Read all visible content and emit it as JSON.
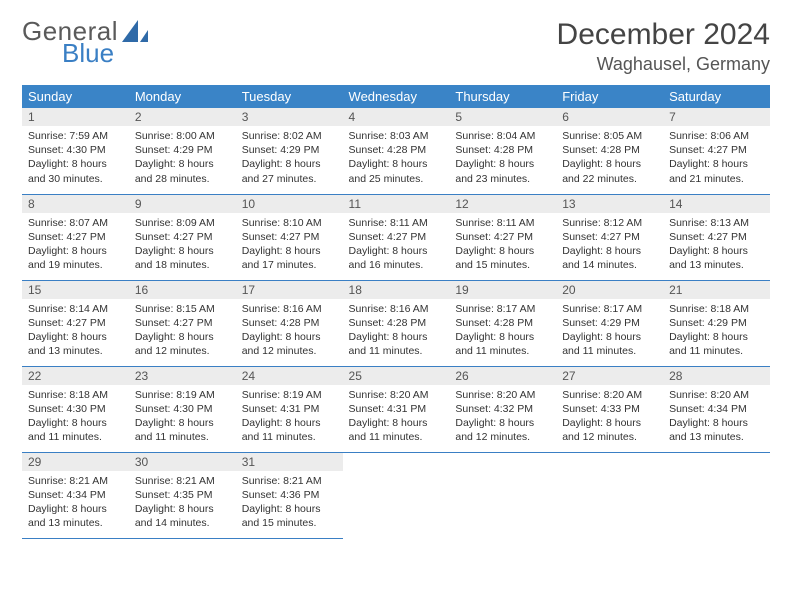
{
  "brand": {
    "word1": "General",
    "word2": "Blue",
    "mark_color": "#2f6aa8"
  },
  "header": {
    "title": "December 2024",
    "location": "Waghausel, Germany"
  },
  "colors": {
    "header_bg": "#3a84c7",
    "header_fg": "#ffffff",
    "rule": "#3a7fc4",
    "daynum_bg": "#ececec"
  },
  "weekdays": [
    "Sunday",
    "Monday",
    "Tuesday",
    "Wednesday",
    "Thursday",
    "Friday",
    "Saturday"
  ],
  "days": [
    {
      "n": 1,
      "sr": "7:59 AM",
      "ss": "4:30 PM",
      "dl": "8 hours and 30 minutes."
    },
    {
      "n": 2,
      "sr": "8:00 AM",
      "ss": "4:29 PM",
      "dl": "8 hours and 28 minutes."
    },
    {
      "n": 3,
      "sr": "8:02 AM",
      "ss": "4:29 PM",
      "dl": "8 hours and 27 minutes."
    },
    {
      "n": 4,
      "sr": "8:03 AM",
      "ss": "4:28 PM",
      "dl": "8 hours and 25 minutes."
    },
    {
      "n": 5,
      "sr": "8:04 AM",
      "ss": "4:28 PM",
      "dl": "8 hours and 23 minutes."
    },
    {
      "n": 6,
      "sr": "8:05 AM",
      "ss": "4:28 PM",
      "dl": "8 hours and 22 minutes."
    },
    {
      "n": 7,
      "sr": "8:06 AM",
      "ss": "4:27 PM",
      "dl": "8 hours and 21 minutes."
    },
    {
      "n": 8,
      "sr": "8:07 AM",
      "ss": "4:27 PM",
      "dl": "8 hours and 19 minutes."
    },
    {
      "n": 9,
      "sr": "8:09 AM",
      "ss": "4:27 PM",
      "dl": "8 hours and 18 minutes."
    },
    {
      "n": 10,
      "sr": "8:10 AM",
      "ss": "4:27 PM",
      "dl": "8 hours and 17 minutes."
    },
    {
      "n": 11,
      "sr": "8:11 AM",
      "ss": "4:27 PM",
      "dl": "8 hours and 16 minutes."
    },
    {
      "n": 12,
      "sr": "8:11 AM",
      "ss": "4:27 PM",
      "dl": "8 hours and 15 minutes."
    },
    {
      "n": 13,
      "sr": "8:12 AM",
      "ss": "4:27 PM",
      "dl": "8 hours and 14 minutes."
    },
    {
      "n": 14,
      "sr": "8:13 AM",
      "ss": "4:27 PM",
      "dl": "8 hours and 13 minutes."
    },
    {
      "n": 15,
      "sr": "8:14 AM",
      "ss": "4:27 PM",
      "dl": "8 hours and 13 minutes."
    },
    {
      "n": 16,
      "sr": "8:15 AM",
      "ss": "4:27 PM",
      "dl": "8 hours and 12 minutes."
    },
    {
      "n": 17,
      "sr": "8:16 AM",
      "ss": "4:28 PM",
      "dl": "8 hours and 12 minutes."
    },
    {
      "n": 18,
      "sr": "8:16 AM",
      "ss": "4:28 PM",
      "dl": "8 hours and 11 minutes."
    },
    {
      "n": 19,
      "sr": "8:17 AM",
      "ss": "4:28 PM",
      "dl": "8 hours and 11 minutes."
    },
    {
      "n": 20,
      "sr": "8:17 AM",
      "ss": "4:29 PM",
      "dl": "8 hours and 11 minutes."
    },
    {
      "n": 21,
      "sr": "8:18 AM",
      "ss": "4:29 PM",
      "dl": "8 hours and 11 minutes."
    },
    {
      "n": 22,
      "sr": "8:18 AM",
      "ss": "4:30 PM",
      "dl": "8 hours and 11 minutes."
    },
    {
      "n": 23,
      "sr": "8:19 AM",
      "ss": "4:30 PM",
      "dl": "8 hours and 11 minutes."
    },
    {
      "n": 24,
      "sr": "8:19 AM",
      "ss": "4:31 PM",
      "dl": "8 hours and 11 minutes."
    },
    {
      "n": 25,
      "sr": "8:20 AM",
      "ss": "4:31 PM",
      "dl": "8 hours and 11 minutes."
    },
    {
      "n": 26,
      "sr": "8:20 AM",
      "ss": "4:32 PM",
      "dl": "8 hours and 12 minutes."
    },
    {
      "n": 27,
      "sr": "8:20 AM",
      "ss": "4:33 PM",
      "dl": "8 hours and 12 minutes."
    },
    {
      "n": 28,
      "sr": "8:20 AM",
      "ss": "4:34 PM",
      "dl": "8 hours and 13 minutes."
    },
    {
      "n": 29,
      "sr": "8:21 AM",
      "ss": "4:34 PM",
      "dl": "8 hours and 13 minutes."
    },
    {
      "n": 30,
      "sr": "8:21 AM",
      "ss": "4:35 PM",
      "dl": "8 hours and 14 minutes."
    },
    {
      "n": 31,
      "sr": "8:21 AM",
      "ss": "4:36 PM",
      "dl": "8 hours and 15 minutes."
    }
  ],
  "labels": {
    "sunrise": "Sunrise:",
    "sunset": "Sunset:",
    "daylight": "Daylight:"
  },
  "layout": {
    "start_offset": 0,
    "total_cells": 35
  }
}
